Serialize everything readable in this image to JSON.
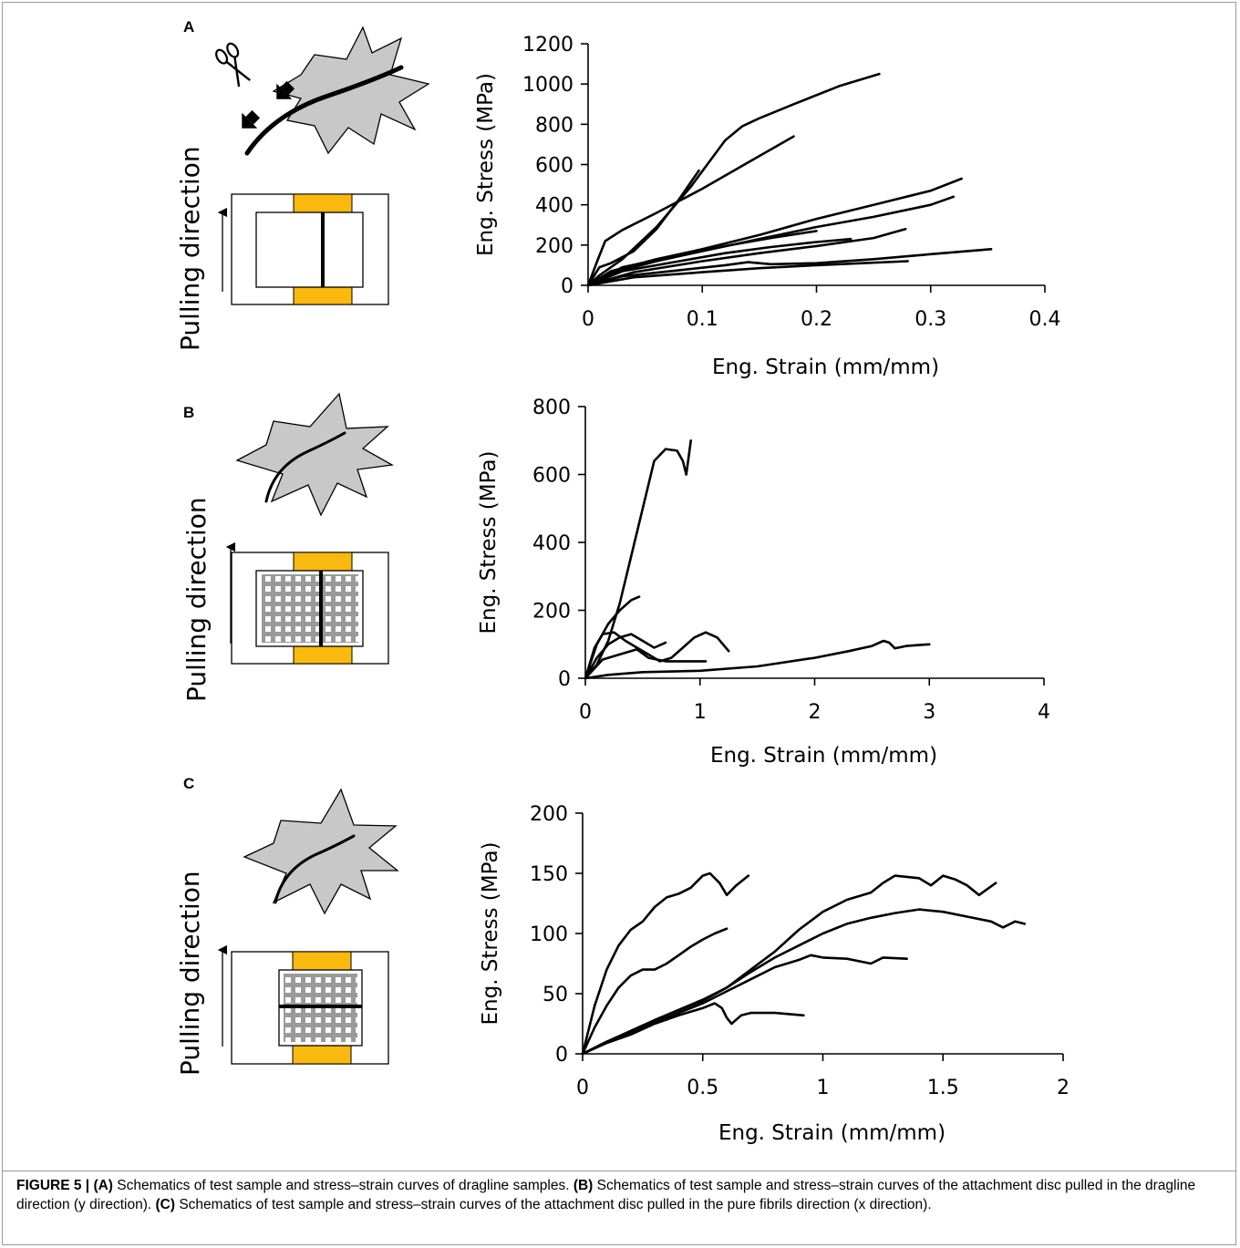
{
  "caption": {
    "figure_label": "FIGURE 5 |",
    "parts": [
      {
        "label": "(A)",
        "text": " Schematics of test sample and stress–strain curves of dragline samples. "
      },
      {
        "label": "(B)",
        "text": " Schematics of test sample and stress–strain curves of the attachment disc pulled in the dragline direction (y direction). "
      },
      {
        "label": "(C)",
        "text": " Schematics of test sample and stress–strain curves of the attachment disc pulled in the pure fibrils direction (x direction)."
      }
    ]
  },
  "panels": [
    {
      "letter": "A",
      "pull_label": "Pulling direction"
    },
    {
      "letter": "B",
      "pull_label": "Pulling direction"
    },
    {
      "letter": "C",
      "pull_label": "Pulling direction"
    }
  ],
  "colors": {
    "clamp": "#F9B90E",
    "leaf": "#C8C8C8",
    "grid_fibril": "#9A9A9A",
    "curve": "#000000"
  },
  "chart_data": [
    {
      "type": "line",
      "panel": "A",
      "xlabel": "Eng. Strain (mm/mm)",
      "ylabel": "Eng. Stress (MPa)",
      "xlim": [
        0,
        0.4
      ],
      "ylim": [
        0,
        1200
      ],
      "xticks": [
        0,
        0.1,
        0.2,
        0.3,
        0.4
      ],
      "xtick_labels": [
        "0",
        "0.1",
        "0.2",
        "0.3",
        "0.4"
      ],
      "yticks": [
        0,
        200,
        400,
        600,
        800,
        1000,
        1200
      ],
      "ytick_labels": [
        "0",
        "200",
        "400",
        "600",
        "800",
        "1000",
        "1200"
      ],
      "series": [
        {
          "points": [
            [
              0,
              0
            ],
            [
              0.01,
              50
            ],
            [
              0.03,
              130
            ],
            [
              0.06,
              290
            ],
            [
              0.09,
              490
            ],
            [
              0.12,
              720
            ],
            [
              0.135,
              790
            ],
            [
              0.15,
              830
            ],
            [
              0.18,
              900
            ],
            [
              0.22,
              990
            ],
            [
              0.255,
              1050
            ]
          ]
        },
        {
          "points": [
            [
              0,
              0
            ],
            [
              0.008,
              120
            ],
            [
              0.015,
              220
            ],
            [
              0.03,
              275
            ],
            [
              0.06,
              360
            ],
            [
              0.1,
              480
            ],
            [
              0.14,
              610
            ],
            [
              0.18,
              740
            ]
          ]
        },
        {
          "points": [
            [
              0,
              0
            ],
            [
              0.01,
              90
            ],
            [
              0.02,
              110
            ],
            [
              0.04,
              170
            ],
            [
              0.06,
              280
            ],
            [
              0.08,
              430
            ],
            [
              0.097,
              570
            ]
          ]
        },
        {
          "points": [
            [
              0,
              0
            ],
            [
              0.02,
              70
            ],
            [
              0.06,
              130
            ],
            [
              0.1,
              180
            ],
            [
              0.15,
              250
            ],
            [
              0.2,
              330
            ],
            [
              0.25,
              400
            ],
            [
              0.3,
              470
            ],
            [
              0.327,
              530
            ]
          ]
        },
        {
          "points": [
            [
              0,
              0
            ],
            [
              0.02,
              60
            ],
            [
              0.06,
              120
            ],
            [
              0.1,
              170
            ],
            [
              0.15,
              230
            ],
            [
              0.2,
              290
            ],
            [
              0.25,
              340
            ],
            [
              0.3,
              400
            ],
            [
              0.32,
              440
            ]
          ]
        },
        {
          "points": [
            [
              0,
              0
            ],
            [
              0.03,
              90
            ],
            [
              0.08,
              150
            ],
            [
              0.12,
              195
            ],
            [
              0.16,
              235
            ],
            [
              0.2,
              270
            ]
          ]
        },
        {
          "points": [
            [
              0,
              0
            ],
            [
              0.03,
              70
            ],
            [
              0.08,
              120
            ],
            [
              0.12,
              160
            ],
            [
              0.16,
              190
            ],
            [
              0.2,
              215
            ],
            [
              0.23,
              230
            ]
          ]
        },
        {
          "points": [
            [
              0,
              0
            ],
            [
              0.04,
              65
            ],
            [
              0.1,
              120
            ],
            [
              0.15,
              160
            ],
            [
              0.2,
              195
            ],
            [
              0.25,
              235
            ],
            [
              0.278,
              280
            ]
          ]
        },
        {
          "points": [
            [
              0,
              0
            ],
            [
              0.03,
              45
            ],
            [
              0.08,
              75
            ],
            [
              0.12,
              100
            ],
            [
              0.14,
              115
            ],
            [
              0.16,
              105
            ],
            [
              0.2,
              110
            ],
            [
              0.25,
              130
            ],
            [
              0.3,
              155
            ],
            [
              0.353,
              180
            ]
          ]
        },
        {
          "points": [
            [
              0,
              0
            ],
            [
              0.04,
              40
            ],
            [
              0.1,
              65
            ],
            [
              0.15,
              85
            ],
            [
              0.2,
              100
            ],
            [
              0.24,
              110
            ],
            [
              0.28,
              120
            ]
          ]
        }
      ]
    },
    {
      "type": "line",
      "panel": "B",
      "xlabel": "Eng. Strain (mm/mm)",
      "ylabel": "Eng. Stress (MPa)",
      "xlim": [
        0,
        4
      ],
      "ylim": [
        0,
        800
      ],
      "xticks": [
        0,
        1,
        2,
        3,
        4
      ],
      "xtick_labels": [
        "0",
        "1",
        "2",
        "3",
        "4"
      ],
      "yticks": [
        0,
        200,
        400,
        600,
        800
      ],
      "ytick_labels": [
        "0",
        "200",
        "400",
        "600",
        "800"
      ],
      "series": [
        {
          "points": [
            [
              0,
              0
            ],
            [
              0.1,
              40
            ],
            [
              0.2,
              110
            ],
            [
              0.3,
              220
            ],
            [
              0.4,
              360
            ],
            [
              0.5,
              500
            ],
            [
              0.6,
              640
            ],
            [
              0.7,
              675
            ],
            [
              0.8,
              670
            ],
            [
              0.85,
              640
            ],
            [
              0.88,
              600
            ],
            [
              0.9,
              650
            ],
            [
              0.92,
              700
            ]
          ]
        },
        {
          "points": [
            [
              0,
              0
            ],
            [
              0.1,
              100
            ],
            [
              0.2,
              160
            ],
            [
              0.3,
              200
            ],
            [
              0.4,
              230
            ],
            [
              0.47,
              240
            ]
          ]
        },
        {
          "points": [
            [
              0,
              0
            ],
            [
              0.08,
              90
            ],
            [
              0.15,
              130
            ],
            [
              0.25,
              135
            ],
            [
              0.35,
              110
            ],
            [
              0.45,
              90
            ],
            [
              0.55,
              70
            ],
            [
              0.65,
              50
            ],
            [
              0.75,
              60
            ],
            [
              0.85,
              90
            ],
            [
              0.95,
              120
            ],
            [
              1.05,
              135
            ],
            [
              1.15,
              120
            ],
            [
              1.25,
              80
            ]
          ]
        },
        {
          "points": [
            [
              0,
              0
            ],
            [
              0.1,
              60
            ],
            [
              0.2,
              100
            ],
            [
              0.3,
              120
            ],
            [
              0.4,
              130
            ],
            [
              0.5,
              110
            ],
            [
              0.6,
              90
            ],
            [
              0.7,
              105
            ]
          ]
        },
        {
          "points": [
            [
              0,
              0
            ],
            [
              0.15,
              55
            ],
            [
              0.3,
              70
            ],
            [
              0.45,
              85
            ],
            [
              0.55,
              60
            ],
            [
              0.7,
              50
            ],
            [
              0.85,
              50
            ],
            [
              1.05,
              50
            ]
          ]
        },
        {
          "points": [
            [
              0,
              0
            ],
            [
              0.2,
              10
            ],
            [
              0.5,
              18
            ],
            [
              1,
              22
            ],
            [
              1.5,
              35
            ],
            [
              2,
              60
            ],
            [
              2.3,
              80
            ],
            [
              2.5,
              95
            ],
            [
              2.6,
              110
            ],
            [
              2.65,
              105
            ],
            [
              2.7,
              88
            ],
            [
              2.8,
              95
            ],
            [
              3,
              100
            ]
          ]
        }
      ]
    },
    {
      "type": "line",
      "panel": "C",
      "xlabel": "Eng. Strain (mm/mm)",
      "ylabel": "Eng. Stress (MPa)",
      "xlim": [
        0,
        2
      ],
      "ylim": [
        0,
        200
      ],
      "xticks": [
        0,
        0.5,
        1,
        1.5,
        2
      ],
      "xtick_labels": [
        "0",
        "0.5",
        "1",
        "1.5",
        "2"
      ],
      "yticks": [
        0,
        50,
        100,
        150,
        200
      ],
      "ytick_labels": [
        "0",
        "50",
        "100",
        "150",
        "200"
      ],
      "series": [
        {
          "points": [
            [
              0,
              0
            ],
            [
              0.05,
              40
            ],
            [
              0.1,
              70
            ],
            [
              0.15,
              90
            ],
            [
              0.2,
              103
            ],
            [
              0.25,
              110
            ],
            [
              0.3,
              122
            ],
            [
              0.35,
              130
            ],
            [
              0.4,
              133
            ],
            [
              0.45,
              138
            ],
            [
              0.5,
              148
            ],
            [
              0.53,
              150
            ],
            [
              0.57,
              142
            ],
            [
              0.6,
              132
            ],
            [
              0.64,
              140
            ],
            [
              0.69,
              148
            ]
          ]
        },
        {
          "points": [
            [
              0,
              0
            ],
            [
              0.05,
              22
            ],
            [
              0.1,
              40
            ],
            [
              0.15,
              55
            ],
            [
              0.2,
              65
            ],
            [
              0.25,
              70
            ],
            [
              0.3,
              70
            ],
            [
              0.35,
              75
            ],
            [
              0.4,
              82
            ],
            [
              0.45,
              89
            ],
            [
              0.5,
              95
            ],
            [
              0.55,
              100
            ],
            [
              0.6,
              104
            ]
          ]
        },
        {
          "points": [
            [
              0,
              0
            ],
            [
              0.1,
              10
            ],
            [
              0.3,
              28
            ],
            [
              0.5,
              44
            ],
            [
              0.6,
              55
            ],
            [
              0.7,
              70
            ],
            [
              0.8,
              85
            ],
            [
              0.9,
              103
            ],
            [
              1,
              118
            ],
            [
              1.1,
              128
            ],
            [
              1.2,
              134
            ],
            [
              1.25,
              142
            ],
            [
              1.3,
              148
            ],
            [
              1.4,
              146
            ],
            [
              1.45,
              140
            ],
            [
              1.5,
              148
            ],
            [
              1.55,
              145
            ],
            [
              1.6,
              140
            ],
            [
              1.65,
              132
            ],
            [
              1.72,
              142
            ]
          ]
        },
        {
          "points": [
            [
              0,
              0
            ],
            [
              0.1,
              10
            ],
            [
              0.3,
              28
            ],
            [
              0.5,
              45
            ],
            [
              0.6,
              55
            ],
            [
              0.7,
              68
            ],
            [
              0.8,
              80
            ],
            [
              0.9,
              90
            ],
            [
              1,
              100
            ],
            [
              1.1,
              108
            ],
            [
              1.2,
              113
            ],
            [
              1.3,
              117
            ],
            [
              1.4,
              120
            ],
            [
              1.5,
              118
            ],
            [
              1.6,
              114
            ],
            [
              1.7,
              110
            ],
            [
              1.75,
              105
            ],
            [
              1.8,
              110
            ],
            [
              1.84,
              108
            ]
          ]
        },
        {
          "points": [
            [
              0,
              0
            ],
            [
              0.1,
              10
            ],
            [
              0.3,
              26
            ],
            [
              0.5,
              42
            ],
            [
              0.6,
              52
            ],
            [
              0.7,
              62
            ],
            [
              0.8,
              72
            ],
            [
              0.9,
              78
            ],
            [
              0.95,
              82
            ],
            [
              1,
              80
            ],
            [
              1.1,
              79
            ],
            [
              1.2,
              75
            ],
            [
              1.25,
              80
            ],
            [
              1.35,
              79
            ]
          ]
        },
        {
          "points": [
            [
              0,
              0
            ],
            [
              0.1,
              9
            ],
            [
              0.2,
              16
            ],
            [
              0.3,
              25
            ],
            [
              0.4,
              32
            ],
            [
              0.45,
              35
            ],
            [
              0.5,
              38
            ],
            [
              0.55,
              42
            ],
            [
              0.58,
              38
            ],
            [
              0.6,
              30
            ],
            [
              0.62,
              25
            ],
            [
              0.66,
              32
            ],
            [
              0.7,
              34
            ],
            [
              0.8,
              34
            ],
            [
              0.92,
              32
            ]
          ]
        }
      ]
    }
  ]
}
